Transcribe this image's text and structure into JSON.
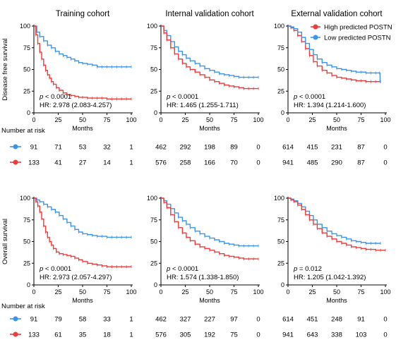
{
  "colors": {
    "high": "#ee3b3b",
    "low": "#3b93ee"
  },
  "legend": {
    "high_label": "High predicted POSTN",
    "low_label": "Low predicted POSTN"
  },
  "risk_title": "Number at risk",
  "ylabels": {
    "dfs": "Disease free survival",
    "os": "Overall survival"
  },
  "chart_data": [
    {
      "type": "line",
      "row": "dfs",
      "title": "Training cohort",
      "xlabel": "Months",
      "ylabel": "Disease free survival",
      "xlim": [
        0,
        100
      ],
      "ylim": [
        0,
        100
      ],
      "xticks": [
        0,
        25,
        50,
        75,
        100
      ],
      "yticks": [
        0,
        25,
        50,
        75,
        100
      ],
      "p_text": "< 0.0001",
      "hr_text": "HR: 2.978 (2.083-4.257)",
      "series": [
        {
          "group": "low",
          "x": [
            0,
            3,
            6,
            10,
            14,
            18,
            22,
            26,
            30,
            34,
            38,
            42,
            46,
            50,
            55,
            60,
            65,
            70,
            75,
            80,
            85,
            90,
            95,
            100
          ],
          "y": [
            100,
            93,
            88,
            83,
            78,
            75,
            71,
            68,
            66,
            64,
            62,
            60,
            58,
            57,
            56,
            55,
            53,
            53,
            53,
            53,
            53,
            53,
            53,
            53
          ]
        },
        {
          "group": "high",
          "x": [
            0,
            2,
            4,
            6,
            8,
            10,
            12,
            14,
            16,
            18,
            20,
            23,
            26,
            30,
            34,
            38,
            42,
            46,
            50,
            55,
            60,
            65,
            70,
            75,
            80,
            85,
            90,
            95,
            100
          ],
          "y": [
            100,
            90,
            80,
            70,
            62,
            55,
            49,
            44,
            40,
            36,
            33,
            29,
            26,
            23,
            21,
            20,
            19,
            18,
            18,
            17,
            17,
            17,
            17,
            16,
            16,
            16,
            16,
            16,
            16
          ]
        }
      ],
      "risk": {
        "low": [
          "91",
          "71",
          "53",
          "32",
          "1"
        ],
        "high": [
          "133",
          "41",
          "27",
          "14",
          "1"
        ]
      }
    },
    {
      "type": "line",
      "row": "dfs",
      "title": "Internal validation cohort",
      "xlabel": "Months",
      "ylabel": "",
      "xlim": [
        0,
        100
      ],
      "ylim": [
        0,
        100
      ],
      "xticks": [
        0,
        25,
        50,
        75,
        100
      ],
      "yticks": [
        0,
        25,
        50,
        75,
        100
      ],
      "p_text": "< 0.0001",
      "hr_text": "HR: 1.465 (1.255-1.711)",
      "series": [
        {
          "group": "low",
          "x": [
            0,
            3,
            6,
            10,
            14,
            18,
            22,
            26,
            30,
            35,
            40,
            45,
            50,
            55,
            60,
            65,
            70,
            75,
            80,
            85,
            90,
            95,
            100
          ],
          "y": [
            100,
            95,
            89,
            82,
            76,
            71,
            67,
            63,
            60,
            57,
            54,
            51,
            49,
            47,
            45,
            44,
            43,
            42,
            41,
            41,
            41,
            41,
            41
          ]
        },
        {
          "group": "high",
          "x": [
            0,
            3,
            6,
            10,
            14,
            18,
            22,
            26,
            30,
            35,
            40,
            45,
            50,
            55,
            60,
            65,
            70,
            75,
            80,
            85,
            90,
            95,
            100
          ],
          "y": [
            100,
            92,
            84,
            75,
            68,
            62,
            57,
            53,
            50,
            47,
            44,
            41,
            38,
            36,
            34,
            32,
            31,
            30,
            29,
            28,
            28,
            28,
            28
          ]
        }
      ],
      "risk": {
        "low": [
          "462",
          "292",
          "198",
          "89",
          "0"
        ],
        "high": [
          "576",
          "258",
          "166",
          "70",
          "0"
        ]
      }
    },
    {
      "type": "line",
      "row": "dfs",
      "title": "External validation cohort",
      "xlabel": "Months",
      "ylabel": "",
      "xlim": [
        0,
        100
      ],
      "ylim": [
        0,
        100
      ],
      "xticks": [
        0,
        25,
        50,
        75,
        100
      ],
      "yticks": [
        0,
        25,
        50,
        75,
        100
      ],
      "p_text": "< 0.0001",
      "hr_text": "HR: 1.394 (1.214-1.600)",
      "legend_position": "top-right",
      "series": [
        {
          "group": "high",
          "x": [
            0,
            3,
            6,
            10,
            14,
            18,
            22,
            26,
            30,
            35,
            40,
            45,
            50,
            55,
            60,
            65,
            70,
            75,
            80,
            85,
            90,
            95
          ],
          "y": [
            100,
            98,
            95,
            89,
            82,
            74,
            66,
            59,
            54,
            49,
            46,
            43,
            41,
            40,
            39,
            38,
            37,
            37,
            36,
            36,
            36,
            36
          ]
        },
        {
          "group": "low",
          "x": [
            0,
            3,
            6,
            10,
            14,
            18,
            22,
            26,
            30,
            35,
            40,
            45,
            50,
            55,
            60,
            65,
            70,
            75,
            80,
            85,
            90,
            94,
            94.5
          ],
          "y": [
            100,
            99,
            97,
            93,
            87,
            80,
            73,
            67,
            62,
            58,
            55,
            53,
            51,
            50,
            49,
            48,
            47,
            47,
            46,
            46,
            46,
            46,
            36
          ]
        }
      ],
      "risk": {
        "low": [
          "614",
          "415",
          "231",
          "87",
          "0"
        ],
        "high": [
          "941",
          "485",
          "290",
          "87",
          "0"
        ]
      }
    },
    {
      "type": "line",
      "row": "os",
      "title": "",
      "xlabel": "Months",
      "ylabel": "Overall survival",
      "xlim": [
        0,
        100
      ],
      "ylim": [
        0,
        100
      ],
      "xticks": [
        0,
        25,
        50,
        75,
        100
      ],
      "yticks": [
        0,
        25,
        50,
        75,
        100
      ],
      "p_text": "< 0.0001",
      "hr_text": "HR: 2.973 (2.057-4.297)",
      "series": [
        {
          "group": "low",
          "x": [
            0,
            3,
            6,
            10,
            14,
            18,
            22,
            26,
            30,
            34,
            38,
            42,
            46,
            50,
            55,
            60,
            65,
            70,
            75,
            80,
            85,
            90,
            95,
            100
          ],
          "y": [
            100,
            98,
            96,
            93,
            90,
            87,
            84,
            80,
            76,
            72,
            68,
            64,
            61,
            59,
            58,
            57,
            56,
            56,
            55,
            55,
            55,
            55,
            55,
            55
          ]
        },
        {
          "group": "high",
          "x": [
            0,
            2,
            4,
            6,
            8,
            10,
            12,
            14,
            16,
            18,
            20,
            23,
            26,
            30,
            34,
            38,
            42,
            46,
            50,
            55,
            60,
            65,
            70,
            75,
            80,
            85,
            90,
            95,
            100
          ],
          "y": [
            100,
            96,
            91,
            84,
            76,
            68,
            61,
            55,
            50,
            46,
            42,
            38,
            36,
            35,
            34,
            33,
            31,
            29,
            27,
            25,
            24,
            23,
            22,
            21,
            21,
            21,
            21,
            21,
            21
          ]
        }
      ],
      "risk": {
        "low": [
          "91",
          "79",
          "58",
          "33",
          "1"
        ],
        "high": [
          "133",
          "61",
          "35",
          "18",
          "1"
        ]
      }
    },
    {
      "type": "line",
      "row": "os",
      "title": "",
      "xlabel": "Months",
      "ylabel": "",
      "xlim": [
        0,
        100
      ],
      "ylim": [
        0,
        100
      ],
      "xticks": [
        0,
        25,
        50,
        75,
        100
      ],
      "yticks": [
        0,
        25,
        50,
        75,
        100
      ],
      "p_text": "< 0.0001",
      "hr_text": "HR: 1.574 (1.338-1.850)",
      "series": [
        {
          "group": "low",
          "x": [
            0,
            3,
            6,
            10,
            14,
            18,
            22,
            26,
            30,
            35,
            40,
            45,
            50,
            55,
            60,
            65,
            70,
            75,
            80,
            85,
            90,
            95,
            100
          ],
          "y": [
            100,
            97,
            93,
            88,
            83,
            78,
            74,
            70,
            66,
            62,
            59,
            56,
            54,
            52,
            50,
            48,
            47,
            46,
            45,
            45,
            45,
            45,
            45
          ]
        },
        {
          "group": "high",
          "x": [
            0,
            3,
            6,
            10,
            14,
            18,
            22,
            26,
            30,
            35,
            40,
            45,
            50,
            55,
            60,
            65,
            70,
            75,
            80,
            85,
            90,
            95,
            100
          ],
          "y": [
            100,
            95,
            89,
            81,
            73,
            66,
            60,
            55,
            51,
            47,
            44,
            42,
            40,
            38,
            36,
            34,
            33,
            32,
            31,
            30,
            30,
            30,
            30
          ]
        }
      ],
      "risk": {
        "low": [
          "462",
          "327",
          "227",
          "97",
          "0"
        ],
        "high": [
          "576",
          "305",
          "192",
          "75",
          "0"
        ]
      }
    },
    {
      "type": "line",
      "row": "os",
      "title": "",
      "xlabel": "Months",
      "ylabel": "",
      "xlim": [
        0,
        100
      ],
      "ylim": [
        0,
        100
      ],
      "xticks": [
        0,
        25,
        50,
        75,
        100
      ],
      "yticks": [
        0,
        25,
        50,
        75,
        100
      ],
      "p_text": "= 0.012",
      "hr_text": "HR: 1.205 (1.042-1.392)",
      "series": [
        {
          "group": "low",
          "x": [
            0,
            3,
            6,
            10,
            14,
            18,
            22,
            26,
            30,
            35,
            40,
            45,
            50,
            55,
            60,
            65,
            70,
            75,
            80,
            85,
            90,
            95
          ],
          "y": [
            100,
            99,
            97,
            94,
            90,
            85,
            80,
            75,
            70,
            66,
            62,
            59,
            57,
            55,
            53,
            51,
            50,
            49,
            48,
            48,
            48,
            48
          ]
        },
        {
          "group": "high",
          "x": [
            0,
            3,
            6,
            10,
            14,
            18,
            22,
            26,
            30,
            35,
            40,
            45,
            50,
            55,
            60,
            65,
            70,
            75,
            80,
            85,
            90,
            95,
            100
          ],
          "y": [
            100,
            98,
            96,
            92,
            87,
            81,
            75,
            70,
            65,
            60,
            56,
            53,
            50,
            48,
            46,
            44,
            43,
            42,
            41,
            41,
            40,
            40,
            40
          ]
        }
      ],
      "risk": {
        "low": [
          "614",
          "451",
          "248",
          "91",
          "0"
        ],
        "high": [
          "941",
          "643",
          "338",
          "103",
          "0"
        ]
      }
    }
  ]
}
